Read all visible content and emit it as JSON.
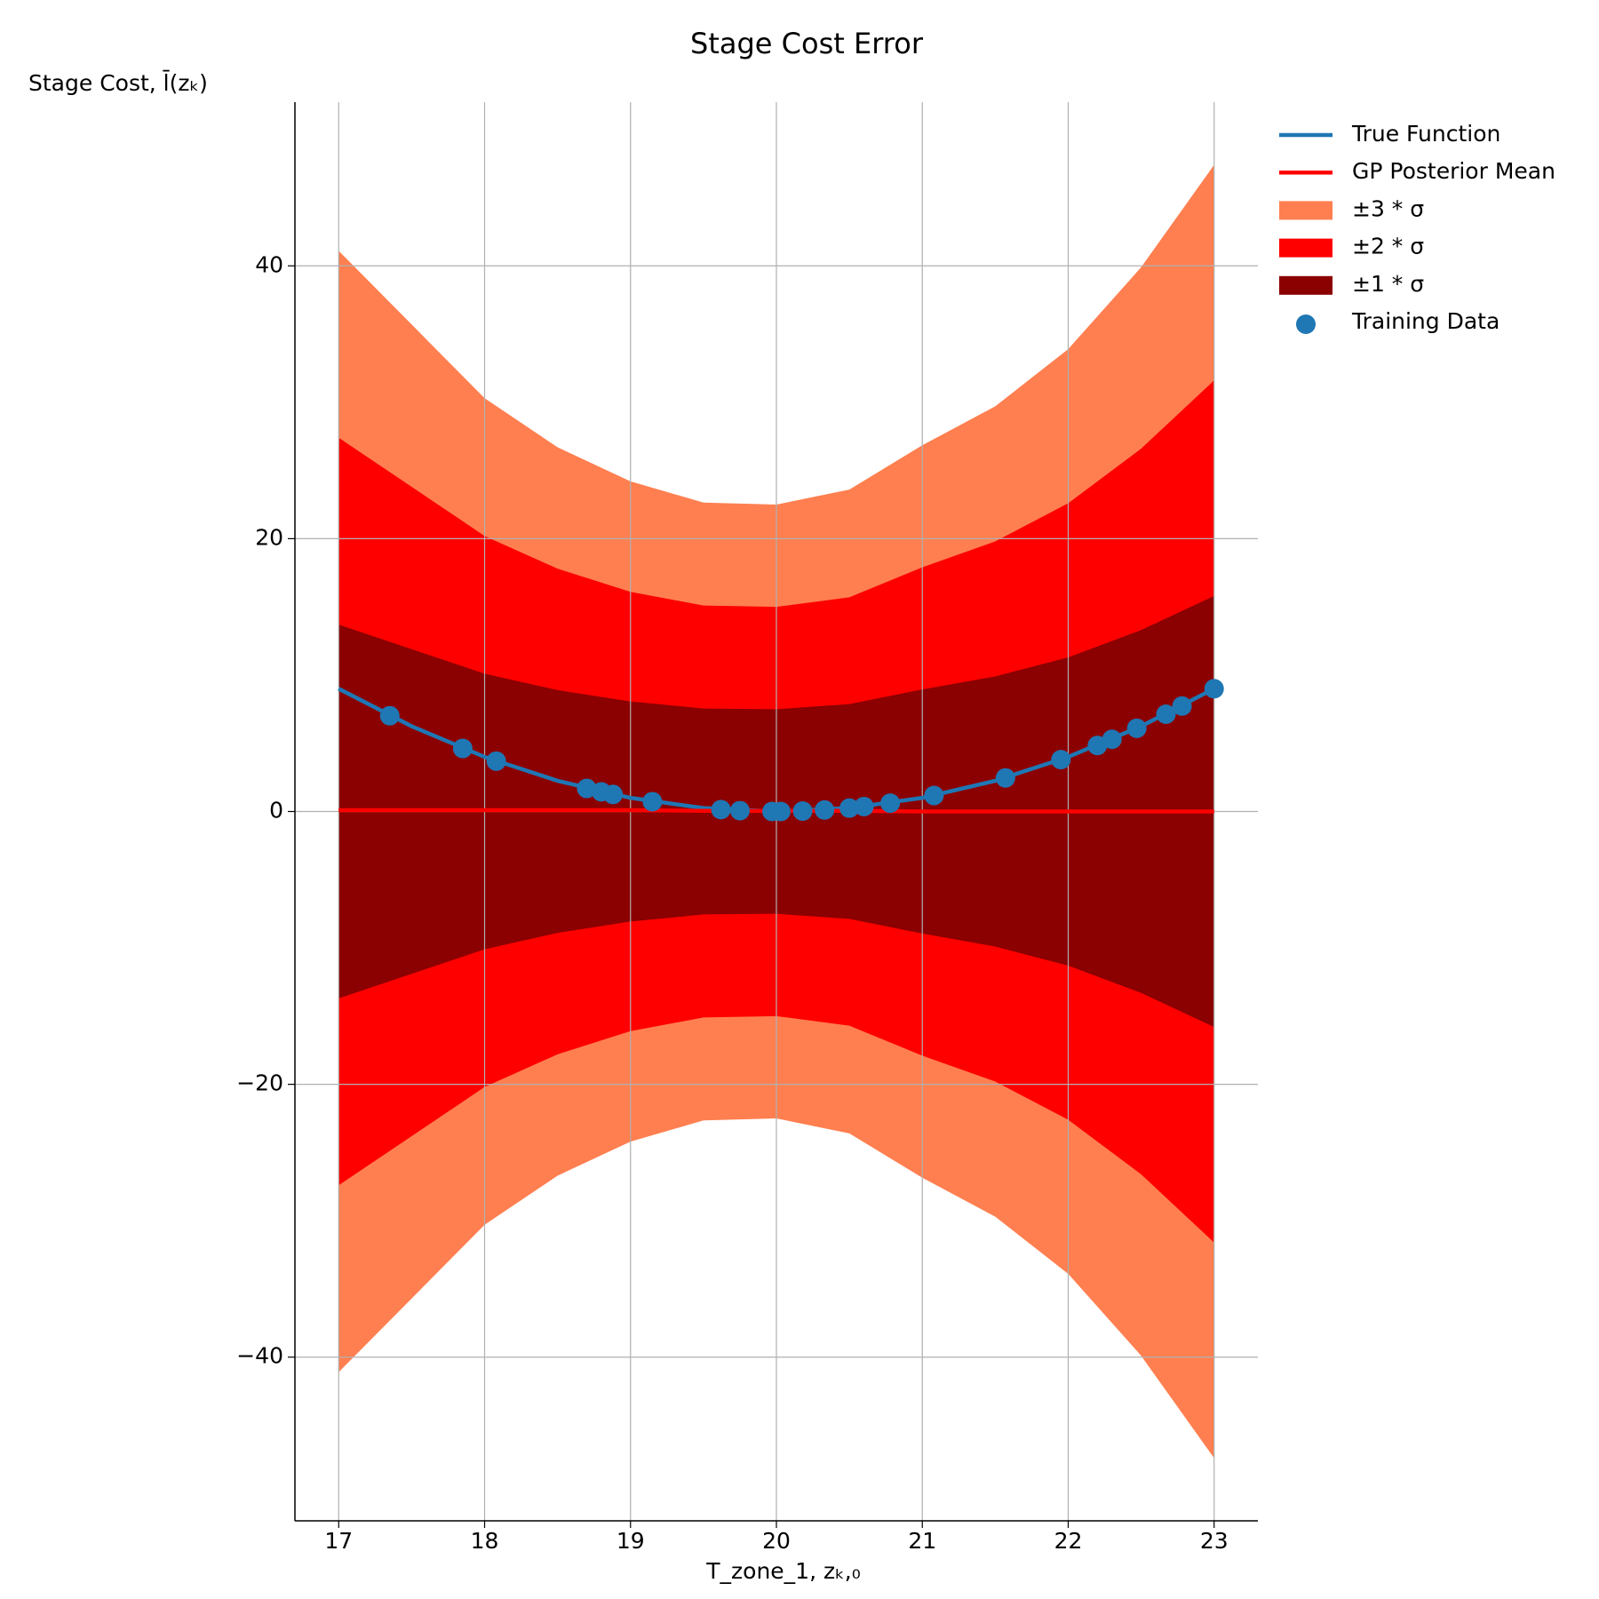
{
  "chart_data": {
    "type": "line",
    "title": "Stage Cost Error",
    "ylabel": "Stage Cost, l̄(zₖ)",
    "xlabel": "T_zone_1, zₖ,₀",
    "xlim": [
      16.7,
      23.3
    ],
    "xticks": [
      17,
      18,
      19,
      20,
      21,
      22,
      23
    ],
    "ylim": [
      -52,
      52
    ],
    "yticks": [
      {
        "value": -40,
        "label": "−40"
      },
      {
        "value": -20,
        "label": "−20"
      },
      0,
      20,
      40
    ],
    "grid": true,
    "legend": "outside-right",
    "x": [
      17,
      17.5,
      18,
      18.5,
      19,
      19.5,
      20,
      20.5,
      21,
      21.5,
      22,
      22.5,
      23
    ],
    "series": [
      {
        "name": "True Function",
        "color": "#1f77b4",
        "values": [
          9,
          6.25,
          4,
          2.25,
          1,
          0.25,
          0,
          0.25,
          1,
          2.25,
          4,
          6.25,
          9
        ]
      },
      {
        "name": "GP Posterior Mean",
        "color": "#ff0000",
        "values": [
          0.1,
          0.1,
          0.1,
          0.1,
          0.1,
          0.05,
          0.05,
          0.05,
          0,
          0,
          0,
          0,
          0
        ]
      }
    ],
    "bands": [
      {
        "name": "±3 * σ",
        "color": "#ff7f50",
        "upper": [
          41.1,
          35.7,
          30.3,
          26.7,
          24.2,
          22.65,
          22.5,
          23.6,
          26.85,
          29.7,
          33.9,
          39.9,
          47.4
        ],
        "lower": [
          -41.1,
          -35.7,
          -30.3,
          -26.7,
          -24.2,
          -22.65,
          -22.5,
          -23.6,
          -26.85,
          -29.7,
          -33.9,
          -39.9,
          -47.4
        ]
      },
      {
        "name": "±2 * σ",
        "color": "#ff0000",
        "upper": [
          27.4,
          23.8,
          20.2,
          17.8,
          16.1,
          15.1,
          15.0,
          15.7,
          17.9,
          19.8,
          22.6,
          26.6,
          31.6
        ],
        "lower": [
          -27.4,
          -23.8,
          -20.2,
          -17.8,
          -16.1,
          -15.1,
          -15.0,
          -15.7,
          -17.9,
          -19.8,
          -22.6,
          -26.6,
          -31.6
        ]
      },
      {
        "name": "±1 * σ",
        "color": "#8b0000",
        "upper": [
          13.7,
          11.9,
          10.1,
          8.9,
          8.07,
          7.55,
          7.5,
          7.87,
          8.95,
          9.9,
          11.3,
          13.3,
          15.8
        ],
        "lower": [
          -13.7,
          -11.9,
          -10.1,
          -8.9,
          -8.07,
          -7.55,
          -7.5,
          -7.87,
          -8.95,
          -9.9,
          -11.3,
          -13.3,
          -15.8
        ]
      }
    ],
    "scatter": {
      "name": "Training Data",
      "color": "#1f77b4",
      "x": [
        17.35,
        17.85,
        18.08,
        18.7,
        18.8,
        18.88,
        19.15,
        19.62,
        19.75,
        19.97,
        20.03,
        20.18,
        20.33,
        20.5,
        20.6,
        20.78,
        21.08,
        21.57,
        21.95,
        22.2,
        22.3,
        22.47,
        22.67,
        22.78,
        23.0
      ],
      "y": [
        7.02,
        4.62,
        3.69,
        1.69,
        1.44,
        1.25,
        0.72,
        0.14,
        0.06,
        0,
        0,
        0.03,
        0.11,
        0.25,
        0.36,
        0.61,
        1.17,
        2.46,
        3.8,
        4.84,
        5.29,
        6.1,
        7.13,
        7.73,
        9.0
      ]
    }
  }
}
